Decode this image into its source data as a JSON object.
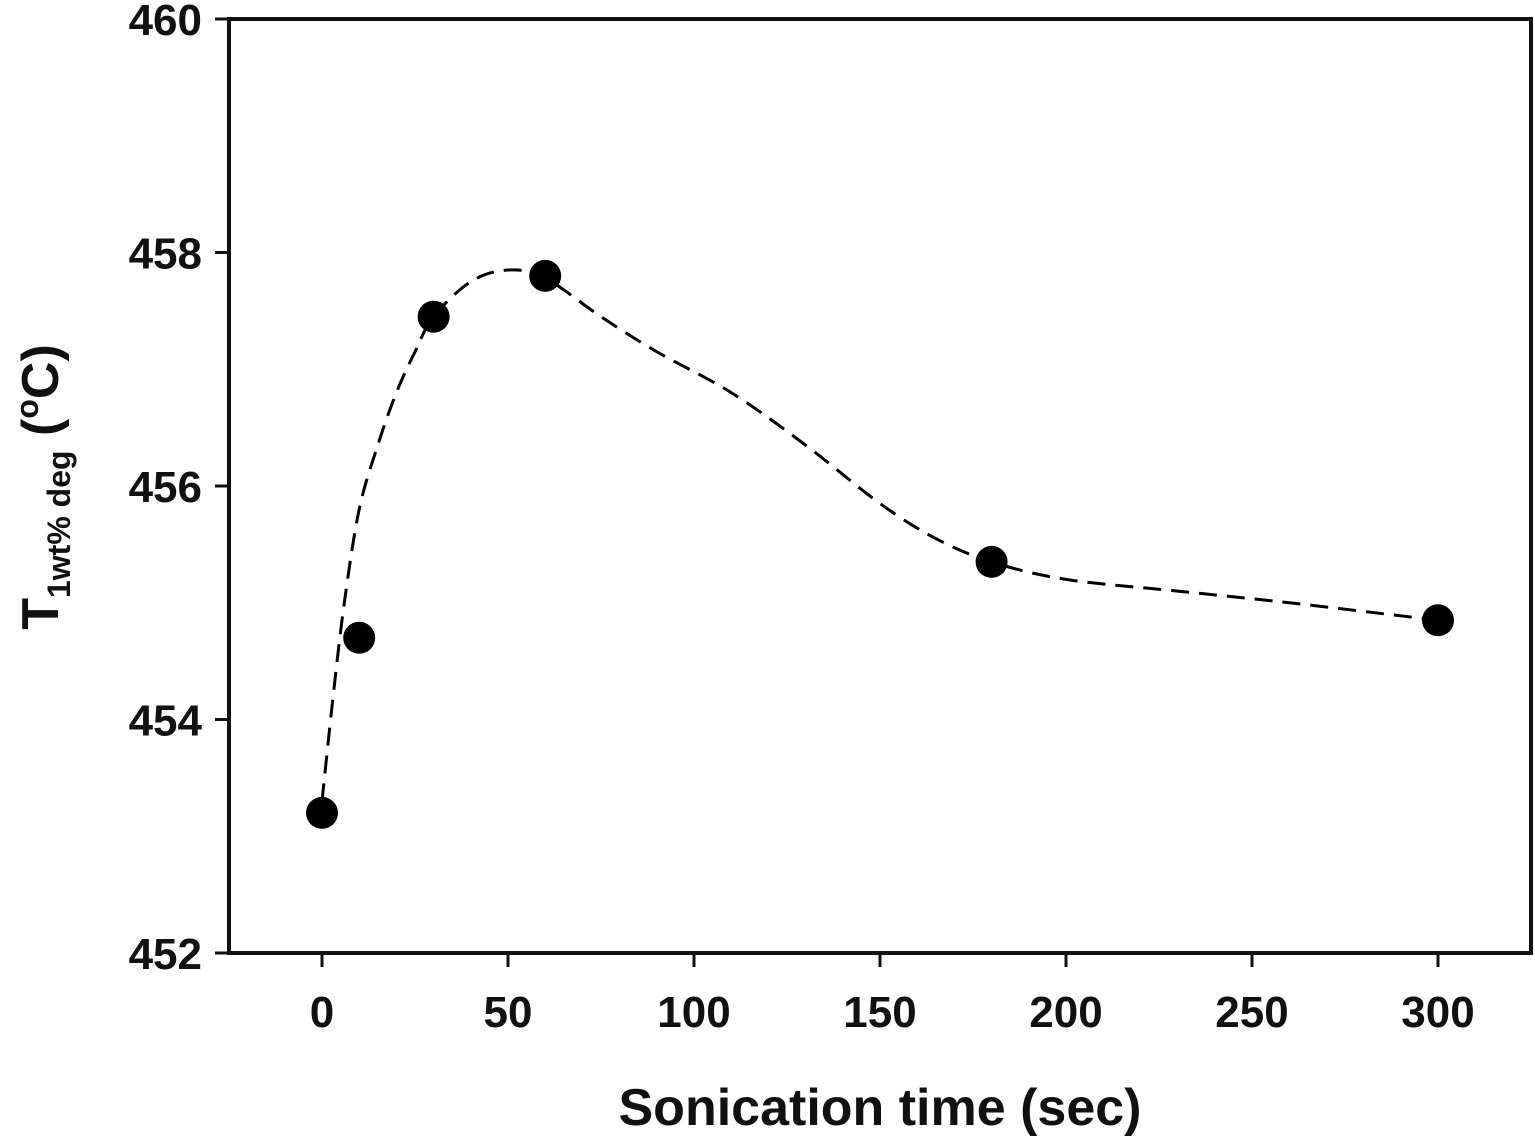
{
  "chart_data": {
    "type": "line",
    "xlabel": "Sonication time (sec)",
    "ylabel": {
      "main": "T",
      "subscript": "1wt% deg",
      "unit_open": " (",
      "unit_sup": "o",
      "unit_rest": "C)"
    },
    "xlim": [
      -25,
      325
    ],
    "ylim": [
      452,
      460
    ],
    "x_ticks": [
      0,
      50,
      100,
      150,
      200,
      250,
      300
    ],
    "y_ticks": [
      452,
      454,
      456,
      458,
      460
    ],
    "grid": false,
    "legend": "none",
    "series": [
      {
        "marker": "filled-circle",
        "line_style": "dashed-smooth",
        "color": "#000000",
        "x": [
          0,
          10,
          30,
          60,
          180,
          300
        ],
        "y": [
          453.2,
          454.7,
          457.45,
          457.8,
          455.35,
          454.85
        ]
      }
    ],
    "fit_curve": {
      "x": [
        0,
        3,
        6,
        10,
        15,
        20,
        25,
        30,
        40,
        50,
        60,
        75,
        90,
        110,
        130,
        150,
        165,
        180,
        200,
        230,
        260,
        300
      ],
      "y": [
        453.3,
        454.2,
        455.0,
        455.8,
        456.35,
        456.8,
        457.15,
        457.45,
        457.75,
        457.85,
        457.78,
        457.45,
        457.15,
        456.8,
        456.35,
        455.85,
        455.55,
        455.35,
        455.2,
        455.1,
        455.0,
        454.85
      ]
    }
  }
}
